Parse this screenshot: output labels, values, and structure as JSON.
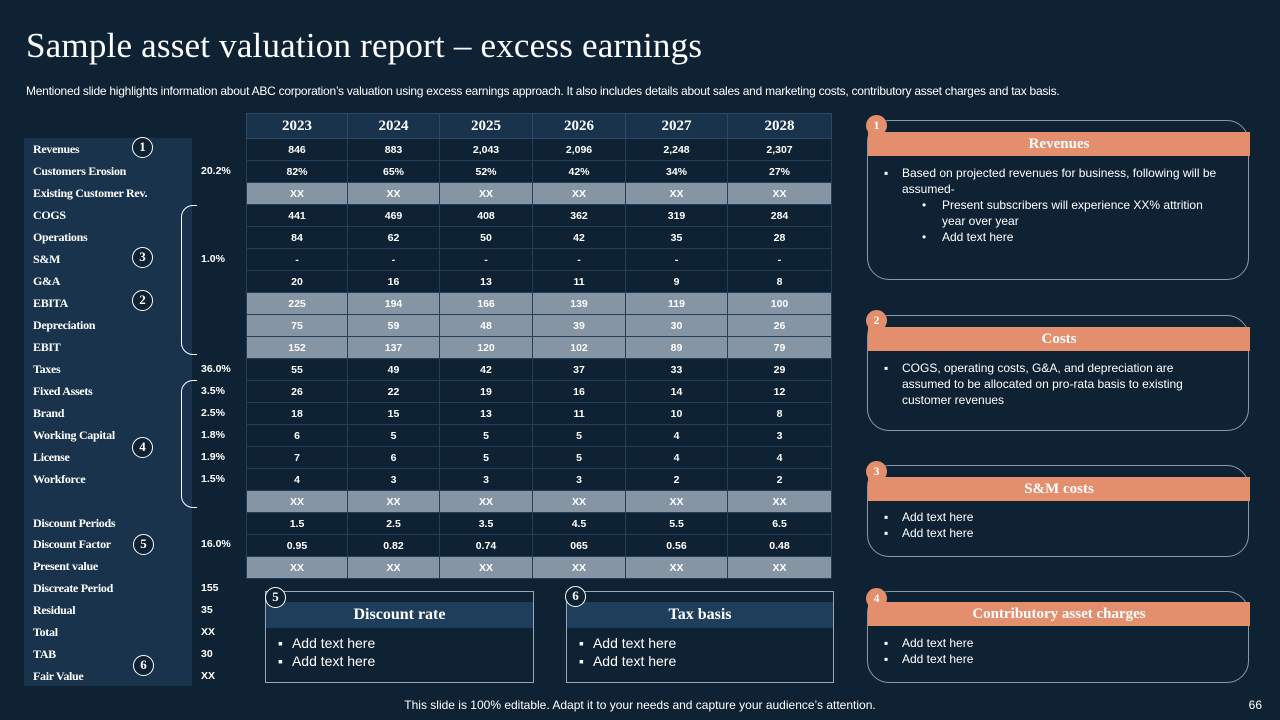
{
  "title": "Sample asset valuation report – excess earnings",
  "subtitle": "Mentioned slide highlights information about ABC corporation’s valuation using excess earnings approach. It also includes details about sales and marketing costs, contributory asset charges and tax basis.",
  "table": {
    "years": [
      "2023",
      "2024",
      "2025",
      "2026",
      "2027",
      "2028"
    ],
    "rows": [
      {
        "label": "Revenues",
        "pct": "",
        "cells": [
          "846",
          "883",
          "2,043",
          "2,096",
          "2,248",
          "2,307"
        ]
      },
      {
        "label": "Customers Erosion",
        "pct": "20.2%",
        "cells": [
          "82%",
          "65%",
          "52%",
          "42%",
          "34%",
          "27%"
        ]
      },
      {
        "label": "Existing Customer Rev.",
        "pct": "",
        "cells": [
          "XX",
          "XX",
          "XX",
          "XX",
          "XX",
          "XX"
        ]
      },
      {
        "label": "COGS",
        "pct": "",
        "cells": [
          "441",
          "469",
          "408",
          "362",
          "319",
          "284"
        ]
      },
      {
        "label": "Operations",
        "pct": "",
        "cells": [
          "84",
          "62",
          "50",
          "42",
          "35",
          "28"
        ]
      },
      {
        "label": "S&M",
        "pct": "1.0%",
        "cells": [
          "-",
          "-",
          "-",
          "-",
          "-",
          "-"
        ]
      },
      {
        "label": "G&A",
        "pct": "",
        "cells": [
          "20",
          "16",
          "13",
          "11",
          "9",
          "8"
        ]
      },
      {
        "label": "EBITA",
        "pct": "",
        "cells": [
          "225",
          "194",
          "166",
          "139",
          "119",
          "100"
        ]
      },
      {
        "label": "Depreciation",
        "pct": "",
        "cells": [
          "75",
          "59",
          "48",
          "39",
          "30",
          "26"
        ]
      },
      {
        "label": "EBIT",
        "pct": "",
        "cells": [
          "152",
          "137",
          "120",
          "102",
          "89",
          "79"
        ]
      },
      {
        "label": "Taxes",
        "pct": "36.0%",
        "cells": [
          "55",
          "49",
          "42",
          "37",
          "33",
          "29"
        ]
      },
      {
        "label": "Fixed Assets",
        "pct": "3.5%",
        "cells": [
          "26",
          "22",
          "19",
          "16",
          "14",
          "12"
        ]
      },
      {
        "label": "Brand",
        "pct": "2.5%",
        "cells": [
          "18",
          "15",
          "13",
          "11",
          "10",
          "8"
        ]
      },
      {
        "label": "Working Capital",
        "pct": "1.8%",
        "cells": [
          "6",
          "5",
          "5",
          "5",
          "4",
          "3"
        ]
      },
      {
        "label": "License",
        "pct": "1.9%",
        "cells": [
          "7",
          "6",
          "5",
          "5",
          "4",
          "4"
        ]
      },
      {
        "label": "Workforce",
        "pct": "1.5%",
        "cells": [
          "4",
          "3",
          "3",
          "3",
          "2",
          "2"
        ]
      },
      {
        "label": "",
        "pct": "",
        "cells": [
          "XX",
          "XX",
          "XX",
          "XX",
          "XX",
          "XX"
        ]
      },
      {
        "label": "Discount Periods",
        "pct": "",
        "cells": [
          "1.5",
          "2.5",
          "3.5",
          "4.5",
          "5.5",
          "6.5"
        ]
      },
      {
        "label": "Discount Factor",
        "pct": "16.0%",
        "cells": [
          "0.95",
          "0.82",
          "0.74",
          "065",
          "0.56",
          "0.48"
        ]
      },
      {
        "label": "Present value",
        "pct": "",
        "cells": [
          "XX",
          "XX",
          "XX",
          "XX",
          "XX",
          "XX"
        ]
      }
    ],
    "summary": [
      {
        "label": "Discreate Period",
        "value": "155"
      },
      {
        "label": "Residual",
        "value": "35"
      },
      {
        "label": "Total",
        "value": "XX"
      },
      {
        "label": "TAB",
        "value": "30"
      },
      {
        "label": "Fair Value",
        "value": "XX"
      }
    ],
    "badges": {
      "n1": "1",
      "n2": "2",
      "n3": "3",
      "n4": "4",
      "n5": "5",
      "n6": "6"
    }
  },
  "discount_box": {
    "number": "5",
    "title": "Discount rate",
    "items": [
      "Add text here",
      "Add text here"
    ]
  },
  "tax_box": {
    "number": "6",
    "title": "Tax basis",
    "items": [
      "Add text here",
      "Add text here"
    ]
  },
  "cards": {
    "revenues": {
      "number": "1",
      "title": "Revenues",
      "bullet": "Based on projected revenues for business, following will be assumed-",
      "sub": [
        "Present subscribers will experience XX% attrition year over year",
        "Add text here"
      ]
    },
    "costs": {
      "number": "2",
      "title": "Costs",
      "bullet": "COGS, operating costs, G&A, and depreciation are assumed to be allocated on pro-rata basis to existing customer revenues"
    },
    "sm": {
      "number": "3",
      "title": "S&M costs",
      "items": [
        "Add text here",
        "Add text here"
      ]
    },
    "cac": {
      "number": "4",
      "title": "Contributory asset charges",
      "items": [
        "Add text here",
        "Add text here"
      ]
    }
  },
  "footer": "This slide is 100% editable. Adapt it to your needs and capture your audience’s attention.",
  "page_number": "66"
}
